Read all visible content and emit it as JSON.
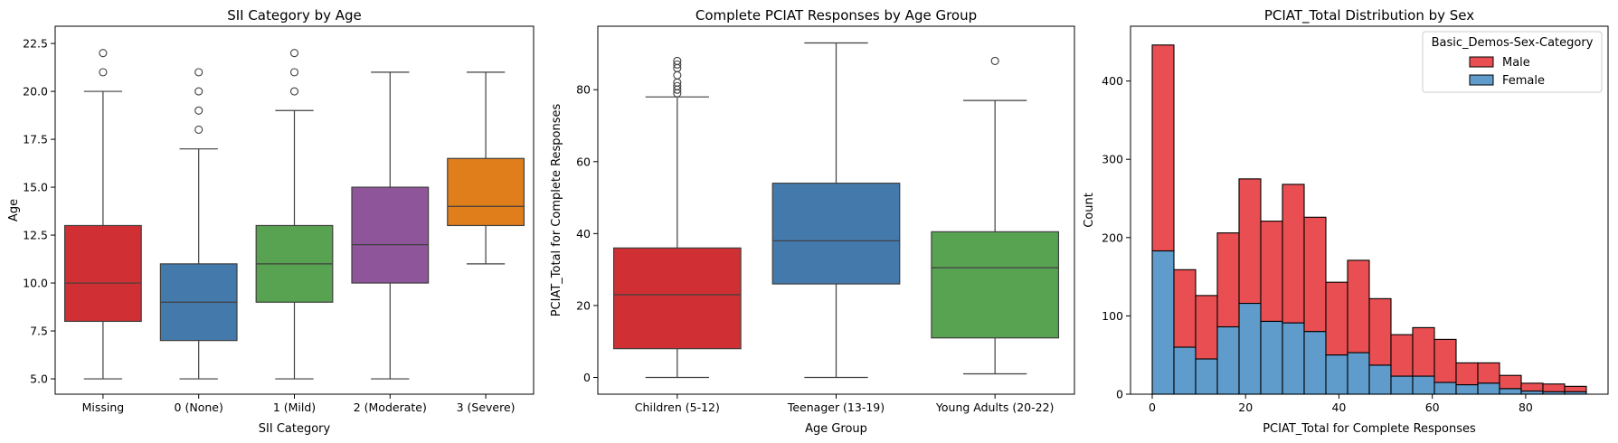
{
  "chart_data": [
    {
      "type": "box",
      "title": "SII Category by Age",
      "xlabel": "SII Category",
      "ylabel": "Age",
      "ylim": [
        4.2,
        23.4
      ],
      "yticks": [
        "5.0",
        "7.5",
        "10.0",
        "12.5",
        "15.0",
        "17.5",
        "20.0",
        "22.5"
      ],
      "categories": [
        "Missing",
        "0 (None)",
        "1 (Mild)",
        "2 (Moderate)",
        "3 (Severe)"
      ],
      "colors": [
        "#d03033",
        "#4379ab",
        "#58a351",
        "#8f559a",
        "#e07e1c"
      ],
      "boxes": [
        {
          "whislo": 5,
          "q1": 8,
          "med": 10,
          "q3": 13,
          "whishi": 20,
          "fliers": [
            21,
            22
          ]
        },
        {
          "whislo": 5,
          "q1": 7,
          "med": 9,
          "q3": 11,
          "whishi": 17,
          "fliers": [
            18,
            19,
            20,
            21
          ]
        },
        {
          "whislo": 5,
          "q1": 9,
          "med": 11,
          "q3": 13,
          "whishi": 19,
          "fliers": [
            20,
            21,
            22
          ]
        },
        {
          "whislo": 5,
          "q1": 10,
          "med": 12,
          "q3": 15,
          "whishi": 21,
          "fliers": []
        },
        {
          "whislo": 11,
          "q1": 13,
          "med": 14,
          "q3": 16.5,
          "whishi": 21,
          "fliers": []
        }
      ]
    },
    {
      "type": "box",
      "title": "Complete PCIAT Responses by Age Group",
      "xlabel": "Age Group",
      "ylabel": "PCIAT_Total for Complete Responses",
      "ylim": [
        -4.65,
        97.65
      ],
      "yticks": [
        "0",
        "20",
        "40",
        "60",
        "80"
      ],
      "categories": [
        "Children (5-12)",
        "Teenager (13-19)",
        "Young Adults (20-22)"
      ],
      "colors": [
        "#d03033",
        "#4379ab",
        "#58a351"
      ],
      "boxes": [
        {
          "whislo": 0,
          "q1": 8,
          "med": 23,
          "q3": 36,
          "whishi": 78,
          "fliers": [
            79,
            80,
            81,
            82,
            84,
            86,
            87,
            88
          ]
        },
        {
          "whislo": 0,
          "q1": 26,
          "med": 38,
          "q3": 54,
          "whishi": 93,
          "fliers": []
        },
        {
          "whislo": 1,
          "q1": 11,
          "med": 30.5,
          "q3": 40.5,
          "whishi": 77,
          "fliers": [
            88
          ]
        }
      ]
    },
    {
      "type": "histogram",
      "title": "PCIAT_Total Distribution by Sex",
      "xlabel": "PCIAT_Total for Complete Responses",
      "ylabel": "Count",
      "xlim": [
        -4.65,
        97.65
      ],
      "ylim": [
        0,
        470
      ],
      "xticks": [
        "0",
        "20",
        "40",
        "60",
        "80"
      ],
      "yticks": [
        "0",
        "100",
        "200",
        "300",
        "400"
      ],
      "bin_edges": [
        0,
        4.65,
        9.3,
        13.95,
        18.6,
        23.25,
        27.9,
        32.55,
        37.2,
        41.85,
        46.5,
        51.15,
        55.8,
        60.45,
        65.1,
        69.75,
        74.4,
        79.05,
        83.7,
        88.35,
        93.0
      ],
      "legend": {
        "title": "Basic_Demos-Sex-Category",
        "position": "top-right"
      },
      "series": [
        {
          "name": "Female",
          "color": "#5f9ccc",
          "values": [
            183,
            60,
            45,
            86,
            116,
            93,
            91,
            80,
            50,
            53,
            37,
            23,
            23,
            15,
            12,
            14,
            7,
            4,
            3,
            3
          ]
        },
        {
          "name": "Male",
          "color": "#e94f52",
          "values": [
            263,
            99,
            81,
            120,
            159,
            128,
            177,
            146,
            93,
            118,
            85,
            53,
            62,
            55,
            28,
            26,
            17,
            10,
            10,
            7
          ]
        }
      ]
    }
  ]
}
